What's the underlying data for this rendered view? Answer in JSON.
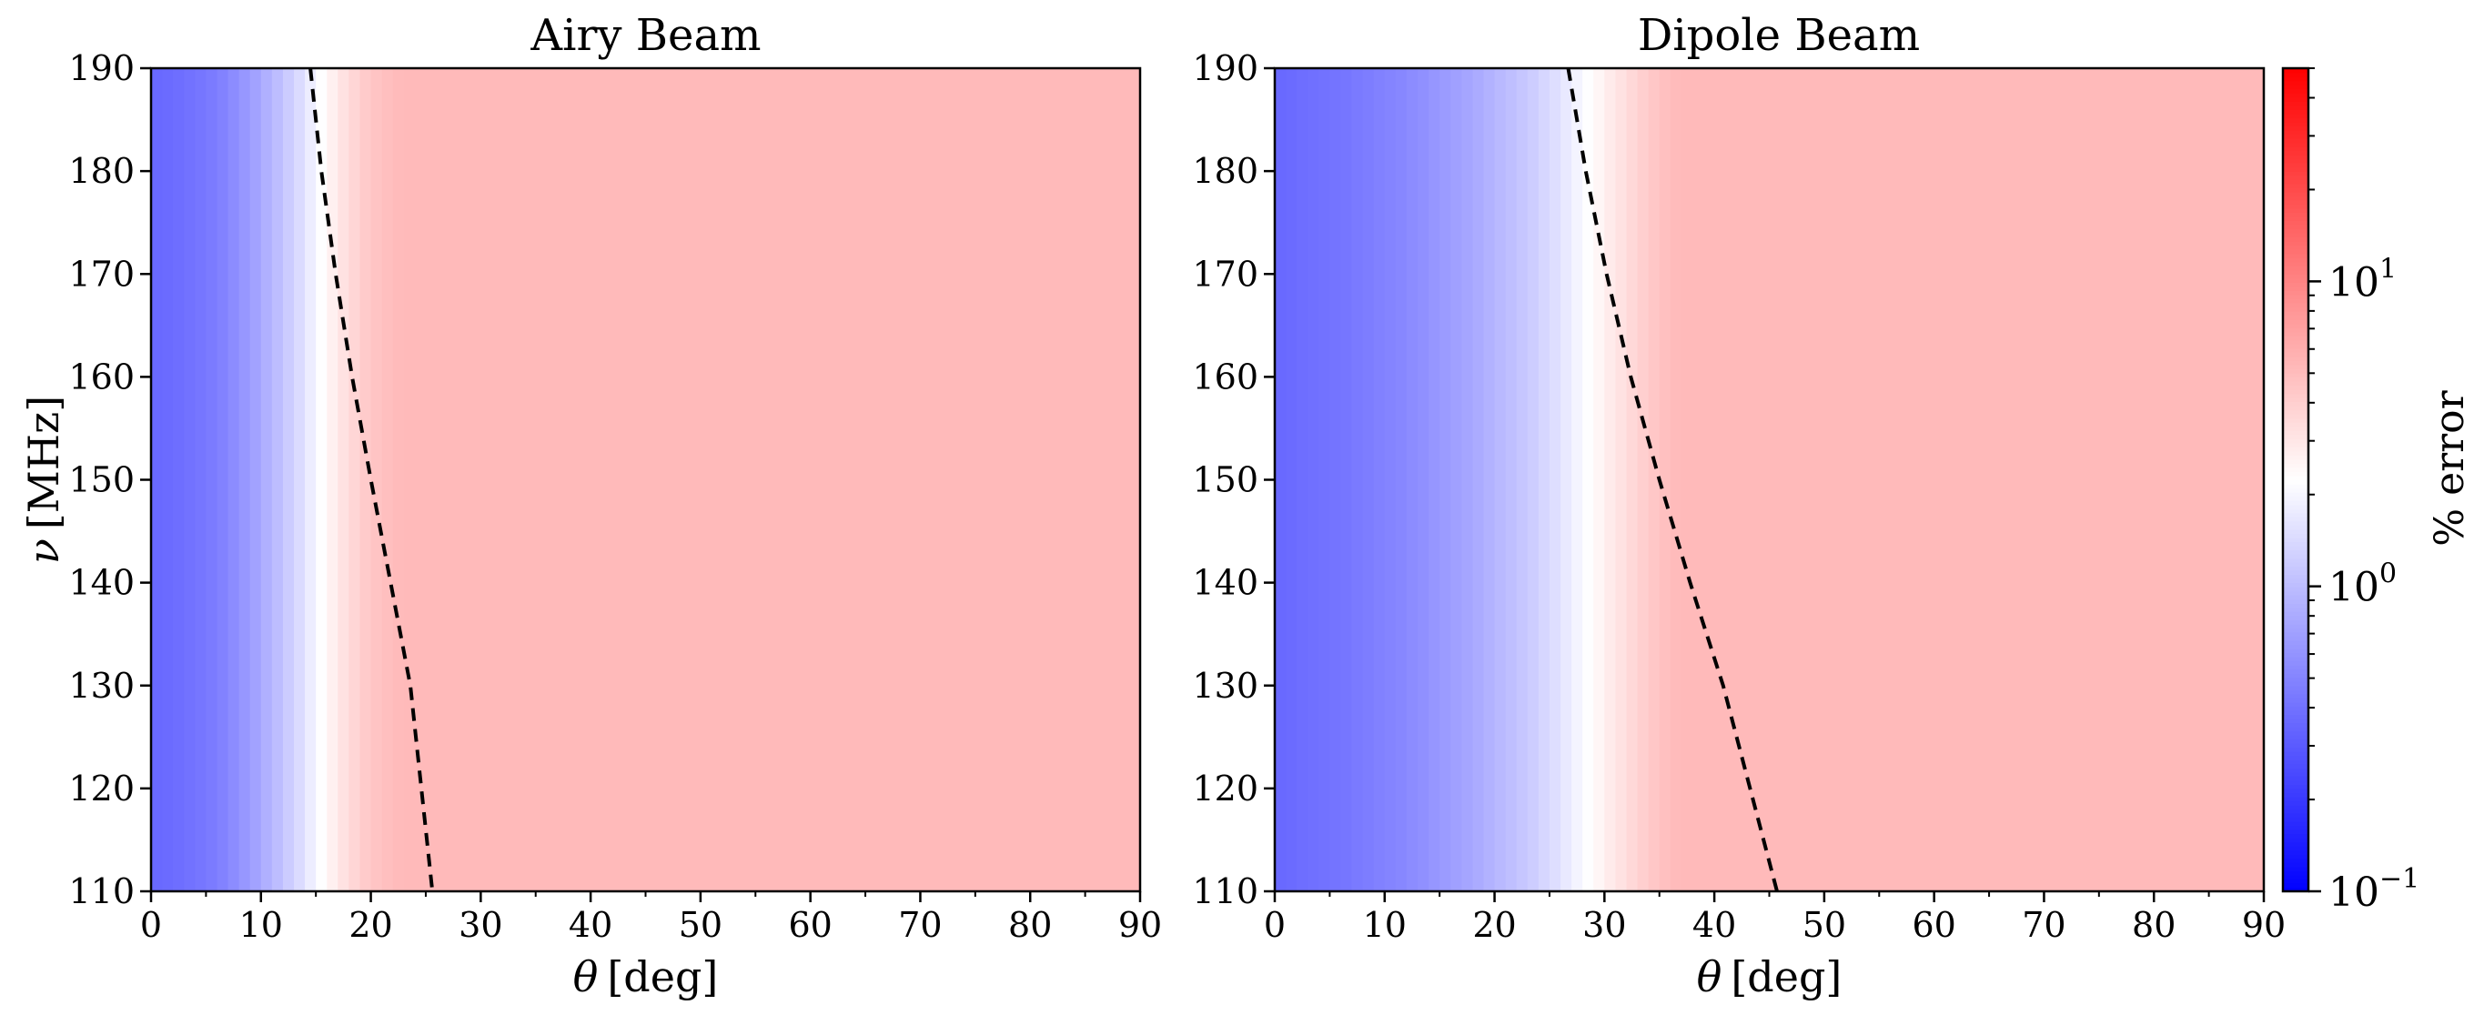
{
  "colors": {
    "cmap_low": "#0000ff",
    "cmap_mid": "#ffffff",
    "cmap_high": "#ff0000",
    "background": "#ffffff",
    "dashed_line": "#000000"
  },
  "colorbar": {
    "label": "% error",
    "scale": "log",
    "range": [
      0.1,
      50
    ],
    "ticks": [
      {
        "value": 0.1,
        "base": "10",
        "exp": "−1"
      },
      {
        "value": 1,
        "base": "10",
        "exp": "0"
      },
      {
        "value": 10,
        "base": "10",
        "exp": "1"
      }
    ]
  },
  "chart_data": [
    {
      "type": "heatmap",
      "title": "Airy Beam",
      "xlabel_symbol": "θ",
      "xlabel_unit": "[deg]",
      "ylabel_symbol": "ν",
      "ylabel_unit": "[MHz]",
      "xlim": [
        0,
        90
      ],
      "ylim": [
        110,
        190
      ],
      "xticks": [
        "0",
        "10",
        "20",
        "30",
        "40",
        "50",
        "60",
        "70",
        "80",
        "90"
      ],
      "yticks": [
        "110",
        "120",
        "130",
        "140",
        "150",
        "160",
        "170",
        "180",
        "190"
      ],
      "theta_step": 1,
      "error_percent_by_theta": [
        0.36,
        0.37,
        0.38,
        0.4,
        0.42,
        0.45,
        0.49,
        0.55,
        0.63,
        0.72,
        0.85,
        1.0,
        1.2,
        1.45,
        1.8,
        2.2,
        2.7,
        3.2,
        3.7,
        4.2,
        4.6,
        4.9,
        5.1,
        5.2
      ],
      "error_percent_plateau": 5.2,
      "dashed_contour": {
        "theta": [
          14.5,
          15.5,
          16.8,
          18.3,
          20.0,
          21.8,
          23.6,
          25.6
        ],
        "nu": [
          190,
          180,
          170,
          160,
          150,
          140,
          130,
          110
        ]
      }
    },
    {
      "type": "heatmap",
      "title": "Dipole Beam",
      "xlabel_symbol": "θ",
      "xlabel_unit": "[deg]",
      "ylabel_symbol": "",
      "ylabel_unit": "",
      "xlim": [
        0,
        90
      ],
      "ylim": [
        110,
        190
      ],
      "xticks": [
        "0",
        "10",
        "20",
        "30",
        "40",
        "50",
        "60",
        "70",
        "80",
        "90"
      ],
      "yticks": [
        "110",
        "120",
        "130",
        "140",
        "150",
        "160",
        "170",
        "180",
        "190"
      ],
      "theta_step": 1,
      "error_percent_by_theta": [
        0.36,
        0.37,
        0.38,
        0.39,
        0.4,
        0.41,
        0.42,
        0.44,
        0.46,
        0.48,
        0.5,
        0.52,
        0.55,
        0.58,
        0.62,
        0.66,
        0.7,
        0.75,
        0.8,
        0.87,
        0.95,
        1.03,
        1.12,
        1.22,
        1.35,
        1.5,
        1.7,
        1.95,
        2.2,
        2.5,
        2.85,
        3.2,
        3.6,
        4.0,
        4.4,
        4.8,
        5.1,
        5.2
      ],
      "error_percent_plateau": 5.2,
      "dashed_contour": {
        "theta": [
          26.7,
          28.3,
          30.2,
          32.4,
          35.0,
          37.8,
          40.8,
          45.7
        ],
        "nu": [
          190,
          180,
          170,
          160,
          150,
          140,
          130,
          110
        ]
      }
    }
  ]
}
